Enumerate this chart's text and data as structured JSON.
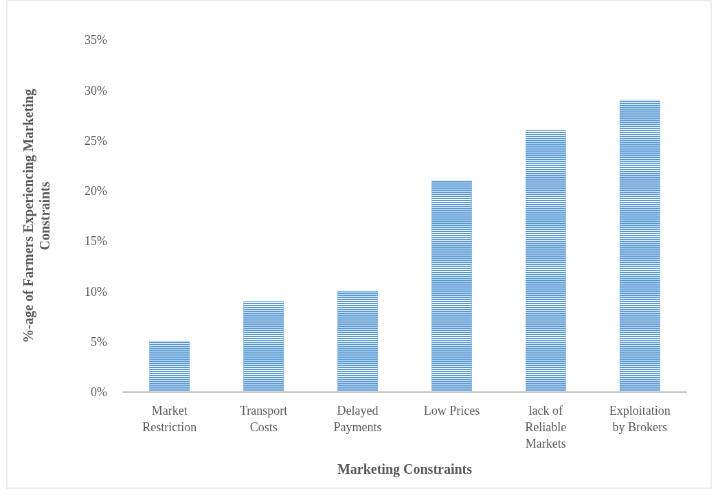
{
  "chart_data": {
    "type": "bar",
    "xlabel": "Marketing Constraints",
    "ylabel": "%-age of Farmers Experiencing Marketing Constraints",
    "categories": [
      "Market Restriction",
      "Transport Costs",
      "Delayed Payments",
      "Low Prices",
      "lack of Reliable Markets",
      "Exploitation by Brokers"
    ],
    "values": [
      5,
      9,
      10,
      21,
      26,
      29
    ],
    "color": "#5b9bd5",
    "ylim": [
      0,
      35
    ],
    "yticks": [
      {
        "value": 0,
        "label": "0%"
      },
      {
        "value": 5,
        "label": "5%"
      },
      {
        "value": 10,
        "label": "10%"
      },
      {
        "value": 15,
        "label": "15%"
      },
      {
        "value": 20,
        "label": "20%"
      },
      {
        "value": 25,
        "label": "25%"
      },
      {
        "value": 30,
        "label": "30%"
      },
      {
        "value": 35,
        "label": "35%"
      }
    ],
    "grid": false
  }
}
